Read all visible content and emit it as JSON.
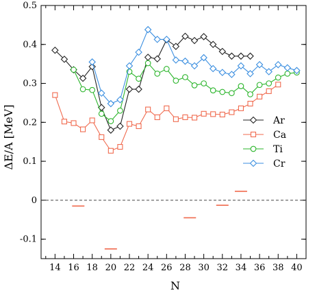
{
  "chart_data": {
    "type": "line",
    "title": "",
    "xlabel": "N",
    "ylabel": "ΔE/A [MeV]",
    "xlim": [
      12.5,
      41
    ],
    "ylim": [
      -0.15,
      0.5
    ],
    "xticks": [
      14,
      16,
      18,
      20,
      22,
      24,
      26,
      28,
      30,
      32,
      34,
      36,
      38,
      40
    ],
    "yticks": [
      -0.1,
      0,
      0.1,
      0.2,
      0.3,
      0.4,
      0.5
    ],
    "ytick_labels": [
      "-0.1",
      "0",
      "0.1",
      "0.2",
      "0.3",
      "0.4",
      "0.5"
    ],
    "grid": false,
    "legend_position": "right",
    "reference_line": {
      "y": 0,
      "style": "dashed"
    },
    "series": [
      {
        "name": "Ar",
        "color": "#222222",
        "marker": "diamond",
        "x": [
          14,
          15,
          16,
          17,
          18,
          19,
          20,
          21,
          22,
          23,
          24,
          25,
          26,
          27,
          28,
          29,
          30,
          31,
          32,
          33,
          34,
          35
        ],
        "y": [
          0.385,
          0.362,
          0.335,
          0.313,
          0.343,
          0.238,
          0.18,
          0.19,
          0.285,
          0.285,
          0.367,
          0.363,
          0.412,
          0.395,
          0.421,
          0.41,
          0.42,
          0.4,
          0.382,
          0.37,
          0.37,
          0.37
        ]
      },
      {
        "name": "Ca",
        "color": "#f06a4e",
        "marker": "square",
        "x": [
          14,
          15,
          16,
          17,
          18,
          19,
          20,
          21,
          22,
          23,
          24,
          25,
          26,
          27,
          28,
          29,
          30,
          31,
          32,
          33,
          34,
          35,
          36,
          37,
          38
        ],
        "y": [
          0.27,
          0.202,
          0.198,
          0.182,
          0.205,
          0.162,
          0.127,
          0.137,
          0.196,
          0.19,
          0.233,
          0.213,
          0.236,
          0.208,
          0.213,
          0.212,
          0.222,
          0.221,
          0.22,
          0.226,
          0.236,
          0.248,
          0.266,
          0.28,
          0.297
        ]
      },
      {
        "name": "Ti",
        "color": "#2bb52b",
        "marker": "circle",
        "x": [
          16,
          17,
          18,
          19,
          20,
          21,
          22,
          23,
          24,
          25,
          26,
          27,
          28,
          29,
          30,
          31,
          32,
          33,
          34,
          35,
          36,
          37,
          38,
          39,
          40
        ],
        "y": [
          0.335,
          0.285,
          0.283,
          0.222,
          0.203,
          0.23,
          0.33,
          0.312,
          0.352,
          0.325,
          0.337,
          0.307,
          0.316,
          0.295,
          0.3,
          0.282,
          0.278,
          0.275,
          0.293,
          0.272,
          0.296,
          0.3,
          0.315,
          0.325,
          0.328
        ]
      },
      {
        "name": "Cr",
        "color": "#3a8ee0",
        "marker": "diamond",
        "x": [
          18,
          19,
          20,
          21,
          22,
          23,
          24,
          25,
          26,
          27,
          28,
          29,
          30,
          31,
          32,
          33,
          34,
          35,
          36,
          37,
          38,
          39,
          40
        ],
        "y": [
          0.355,
          0.275,
          0.248,
          0.258,
          0.345,
          0.38,
          0.438,
          0.413,
          0.413,
          0.36,
          0.357,
          0.345,
          0.366,
          0.338,
          0.328,
          0.323,
          0.345,
          0.325,
          0.348,
          0.33,
          0.348,
          0.34,
          0.333
        ]
      }
    ],
    "markers_dash": [
      {
        "x": 16.5,
        "y": -0.015
      },
      {
        "x": 20,
        "y": -0.125
      },
      {
        "x": 28.5,
        "y": -0.045
      },
      {
        "x": 32,
        "y": -0.013
      },
      {
        "x": 34,
        "y": 0.023
      }
    ],
    "markers_dash_color": "#f06a4e"
  }
}
